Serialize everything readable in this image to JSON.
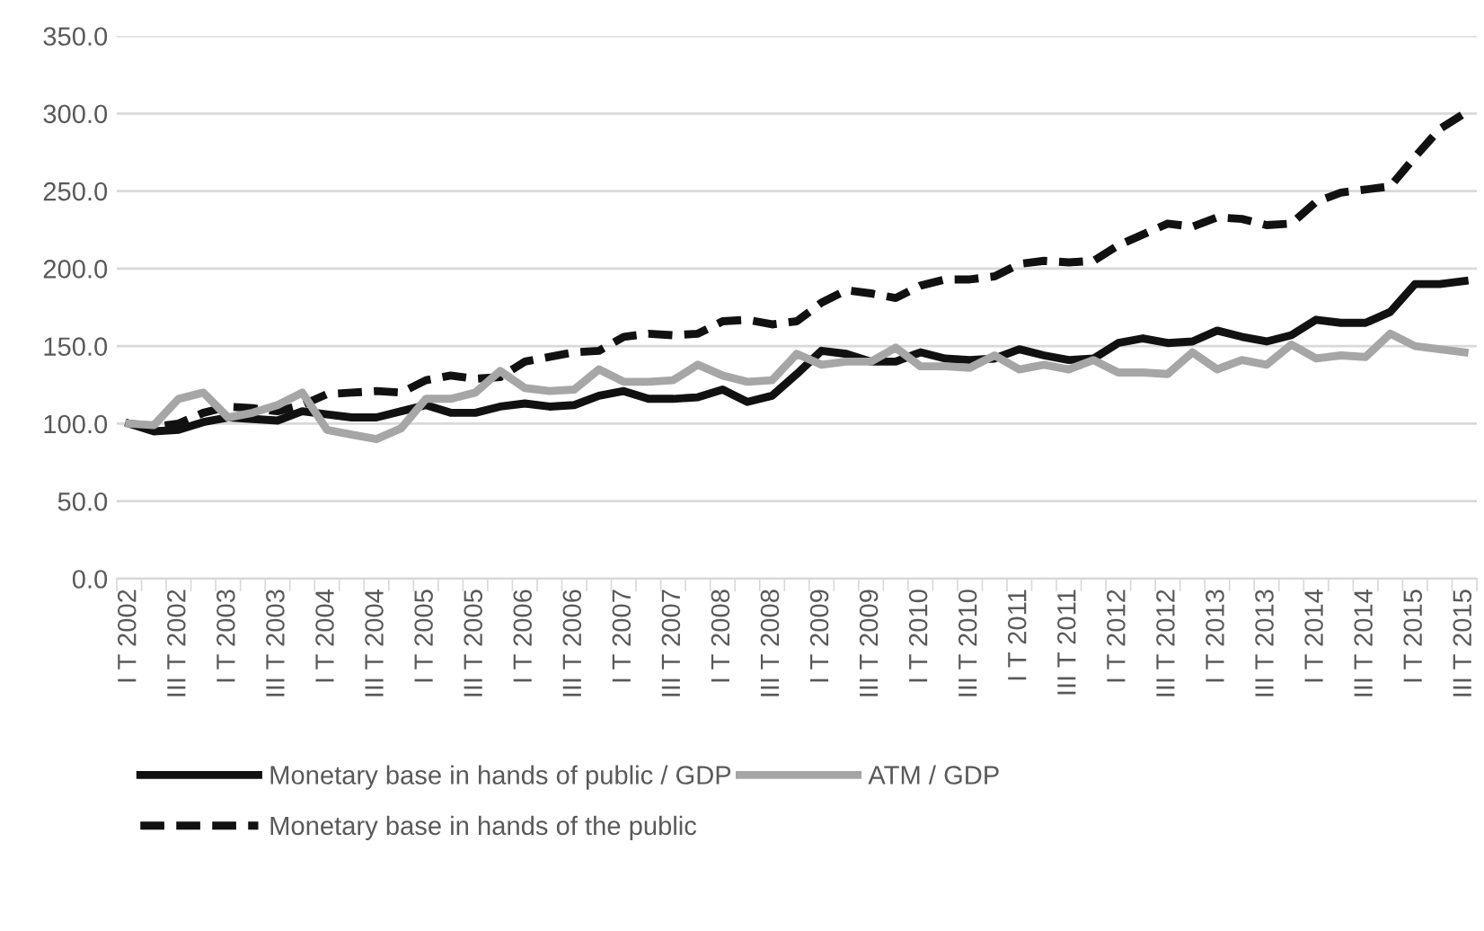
{
  "chart_data": {
    "type": "line",
    "categories": [
      "I T 2002",
      null,
      "III T 2002",
      null,
      "I T 2003",
      null,
      "III T 2003",
      null,
      "I T 2004",
      null,
      "III T 2004",
      null,
      "I T 2005",
      null,
      "III T 2005",
      null,
      "I T 2006",
      null,
      "III T 2006",
      null,
      "I T 2007",
      null,
      "III T 2007",
      null,
      "I T 2008",
      null,
      "III T 2008",
      null,
      "I T 2009",
      null,
      "III T 2009",
      null,
      "I T 2010",
      null,
      "III T 2010",
      null,
      "I T 2011",
      null,
      "III T 2011",
      null,
      "I T 2012",
      null,
      "III T 2012",
      null,
      "I T 2013",
      null,
      "III T 2013",
      null,
      "I T 2014",
      null,
      "III T 2014",
      null,
      "I T 2015",
      null,
      "III T 2015"
    ],
    "series": [
      {
        "name": "Monetary base in hands of public / GDP",
        "color": "#111111",
        "line_style": "solid",
        "values": [
          100,
          95,
          96,
          101,
          104,
          103,
          102,
          108,
          106,
          104,
          104,
          108,
          112,
          107,
          107,
          111,
          113,
          111,
          112,
          118,
          121,
          116,
          116,
          117,
          122,
          114,
          118,
          132,
          147,
          145,
          140,
          140,
          146,
          142,
          141,
          142,
          148,
          144,
          141,
          142,
          152,
          155,
          152,
          153,
          160,
          156,
          153,
          157,
          167,
          165,
          165,
          172,
          190,
          190,
          192
        ]
      },
      {
        "name": "Monetary base in hands of the public",
        "color": "#111111",
        "line_style": "dashed",
        "values": [
          100,
          98,
          100,
          107,
          111,
          110,
          108,
          112,
          119,
          120,
          121,
          120,
          128,
          131,
          129,
          130,
          140,
          143,
          146,
          147,
          156,
          158,
          157,
          158,
          166,
          167,
          164,
          166,
          178,
          186,
          184,
          181,
          189,
          193,
          193,
          195,
          203,
          205,
          204,
          205,
          215,
          222,
          229,
          227,
          233,
          232,
          228,
          229,
          243,
          249,
          251,
          253,
          272,
          290,
          300
        ]
      },
      {
        "name": "ATM / GDP",
        "color": "#a6a6a6",
        "line_style": "solid",
        "values": [
          100,
          99,
          116,
          120,
          104,
          107,
          112,
          120,
          96,
          93,
          90,
          97,
          116,
          116,
          120,
          134,
          123,
          121,
          122,
          135,
          127,
          127,
          128,
          138,
          131,
          127,
          128,
          145,
          138,
          140,
          140,
          149,
          137,
          137,
          136,
          144,
          135,
          138,
          135,
          141,
          133,
          133,
          132,
          146,
          135,
          141,
          138,
          151,
          142,
          144,
          143,
          158,
          150,
          148,
          146
        ]
      }
    ],
    "ylim": [
      0,
      350
    ],
    "yticks": [
      {
        "value": 0,
        "label": "0.0"
      },
      {
        "value": 50,
        "label": "50.0"
      },
      {
        "value": 100,
        "label": "100.0"
      },
      {
        "value": 150,
        "label": "150.0"
      },
      {
        "value": 200,
        "label": "200.0"
      },
      {
        "value": 250,
        "label": "250.0"
      },
      {
        "value": 300,
        "label": "300.0"
      },
      {
        "value": 350,
        "label": "350.0"
      }
    ],
    "grid": "y",
    "legend": "bottom",
    "marker": "none"
  }
}
